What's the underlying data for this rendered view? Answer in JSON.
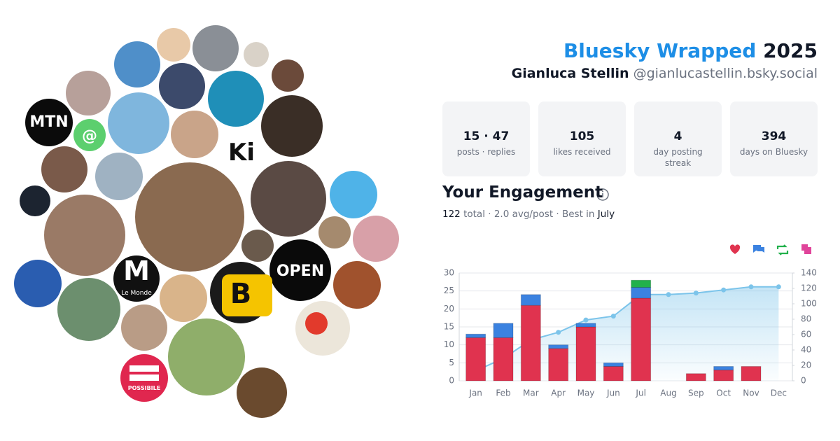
{
  "header": {
    "title": "Bluesky Wrapped",
    "year": "2025",
    "name": "Gianluca Stellin",
    "handle": "@gianlucastellin.bsky.social"
  },
  "stats": [
    {
      "value": "15 · 47",
      "label": "posts · replies"
    },
    {
      "value": "105",
      "label": "likes received"
    },
    {
      "value": "4",
      "label": "day posting streak"
    },
    {
      "value": "394",
      "label": "days on Bluesky"
    }
  ],
  "engagement": {
    "heading": "Your Engagement",
    "total": "122",
    "summary": "total · 2.0 avg/post · Best in",
    "best_month": "July"
  },
  "avatar_logos": [
    "MTN",
    "@",
    "Ki",
    "OPEN",
    "B",
    "M",
    "Le Monde",
    "POSSIBILE"
  ],
  "chart_data": {
    "type": "bar",
    "stacked": true,
    "categories": [
      "Jan",
      "Feb",
      "Mar",
      "Apr",
      "May",
      "Jun",
      "Jul",
      "Aug",
      "Sep",
      "Oct",
      "Nov",
      "Dec"
    ],
    "series": [
      {
        "color": "#e0334f",
        "values": [
          12,
          12,
          21,
          9,
          15,
          4,
          23,
          0,
          2,
          3,
          4,
          0
        ]
      },
      {
        "color": "#3b82e0",
        "values": [
          1,
          4,
          3,
          1,
          1,
          1,
          3,
          0,
          0,
          1,
          0,
          0
        ]
      },
      {
        "color": "#22b14c",
        "values": [
          0,
          0,
          0,
          0,
          0,
          0,
          2,
          0,
          0,
          0,
          0,
          0
        ]
      },
      {
        "color": "#e0449a",
        "values": [
          0,
          0,
          0,
          0,
          0,
          0,
          0,
          0,
          0,
          0,
          0,
          0
        ]
      },
      {
        "type": "line",
        "axis": "y2",
        "area": true,
        "color": "#7cc4ea",
        "values": [
          13,
          29,
          53,
          63,
          79,
          84,
          112,
          112,
          114,
          118,
          122,
          122
        ]
      }
    ],
    "ylim": [
      0,
      30
    ],
    "yticks": [
      0,
      5,
      10,
      15,
      20,
      25,
      30
    ],
    "y2lim": [
      0,
      140
    ],
    "y2ticks": [
      0,
      20,
      40,
      60,
      80,
      100,
      120,
      140
    ],
    "grid": true
  }
}
